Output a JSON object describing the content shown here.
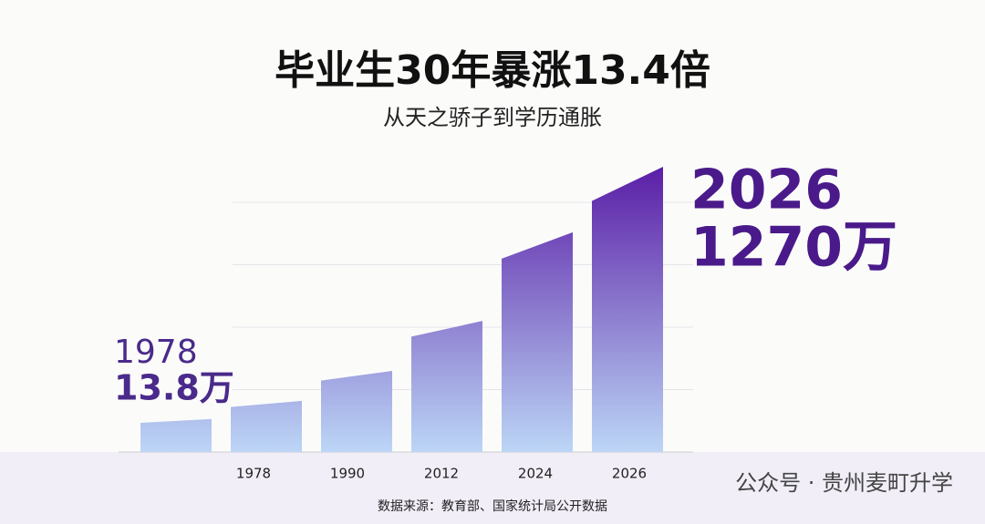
{
  "chart_data": {
    "type": "bar",
    "title": "毕业生30年暴涨13.4倍",
    "subtitle": "从天之骄子到学历通胀",
    "categories": [
      null,
      "1978",
      "1990",
      "2012",
      "2024",
      "2026"
    ],
    "values": [
      0.53,
      0.82,
      1.3,
      2.1,
      3.52,
      4.57
    ],
    "ylim": [
      0,
      4.6
    ],
    "yticks": [
      1,
      2,
      3,
      4
    ],
    "grid": true,
    "color_top": "#5a1ea6",
    "color_bottom": "#bcd6f6",
    "annotations": {
      "start_year": "1978",
      "start_value": "13.8万",
      "end_year": "2026",
      "end_value": "1270万"
    },
    "source": "数据来源：教育部、国家统计局公开数据",
    "watermark": "公众号 · 贵州麦町升学"
  }
}
